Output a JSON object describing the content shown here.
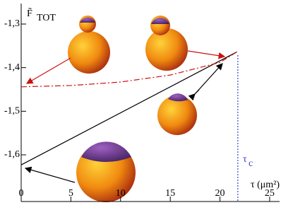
{
  "chart_data": {
    "type": "line",
    "y_label": "F̃",
    "y_label_sub": "TOT",
    "x_label": "τ (μm²)",
    "marker_label": "τ",
    "marker_label_sub": "c",
    "marker_x": 21.8,
    "marker_color": "#3344cc",
    "series": [
      {
        "color": "#000000",
        "dash": "solid",
        "x": [
          0,
          21.7
        ],
        "values": [
          -1.623,
          -1.364
        ]
      },
      {
        "color": "#cc1111",
        "dash": "dashdot",
        "x": [
          0,
          5,
          10,
          15,
          20,
          21.7
        ],
        "values": [
          -1.444,
          -1.441,
          -1.433,
          -1.417,
          -1.388,
          -1.364
        ]
      }
    ],
    "xlim": [
      0,
      26
    ],
    "ylim": [
      -1.707,
      -1.253
    ],
    "xticks": [
      0,
      5,
      10,
      15,
      20,
      25
    ],
    "yticks": [
      {
        "value": -1.3,
        "label": "-1,3"
      },
      {
        "value": -1.4,
        "label": "-1,4"
      },
      {
        "value": -1.5,
        "label": "-1,5"
      },
      {
        "value": -1.6,
        "label": "-1,6"
      }
    ]
  }
}
